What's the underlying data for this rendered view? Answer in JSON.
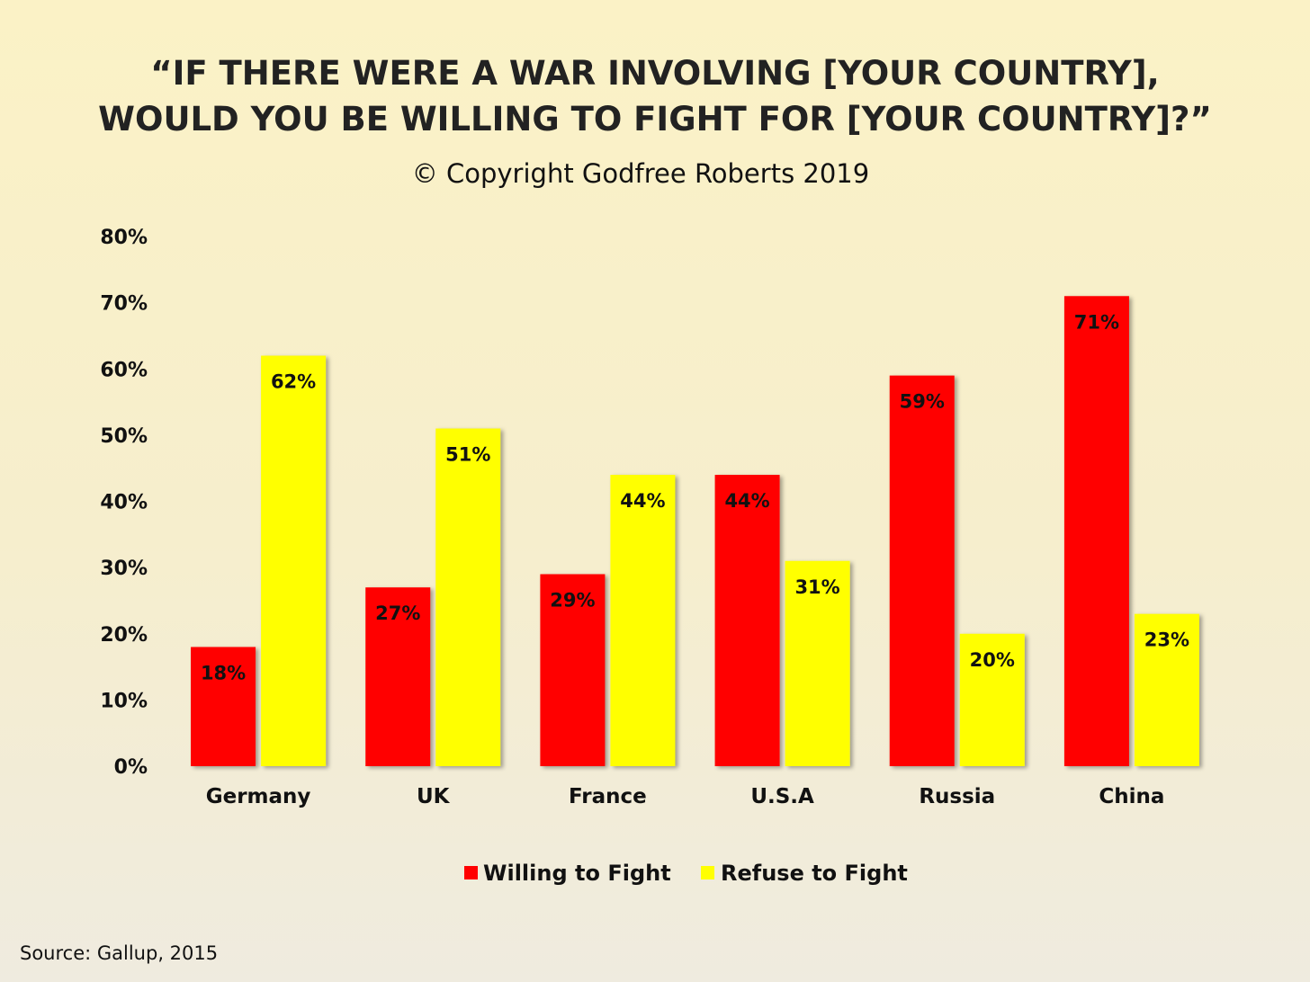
{
  "source_note": "Source: Gallup, 2015",
  "colors": {
    "willing": "#ff0000",
    "refuse": "#ffff00"
  },
  "chart_data": {
    "type": "bar",
    "title": "“IF THERE WERE A WAR INVOLVING [YOUR COUNTRY], WOULD YOU BE WILLING TO FIGHT FOR [YOUR COUNTRY]?”",
    "title_lines": [
      "“IF THERE WERE A WAR INVOLVING [YOUR COUNTRY],",
      "WOULD YOU BE WILLING TO FIGHT FOR [YOUR COUNTRY]?”"
    ],
    "subtitle": "© Copyright Godfree Roberts 2019",
    "categories": [
      "Germany",
      "UK",
      "France",
      "U.S.A",
      "Russia",
      "China"
    ],
    "series": [
      {
        "name": "Willing to Fight",
        "values": [
          18,
          27,
          29,
          44,
          59,
          71
        ],
        "labels": [
          "18%",
          "27%",
          "29%",
          "44%",
          "59%",
          "71%"
        ]
      },
      {
        "name": "Refuse to Fight",
        "values": [
          62,
          51,
          44,
          31,
          20,
          23
        ],
        "labels": [
          "62%",
          "51%",
          "44%",
          "31%",
          "20%",
          "23%"
        ]
      }
    ],
    "y_ticks": [
      "0%",
      "10%",
      "20%",
      "30%",
      "40%",
      "50%",
      "60%",
      "70%",
      "80%"
    ],
    "ylim": [
      0,
      80
    ],
    "grid": false,
    "legend_position": "bottom",
    "xlabel": "",
    "ylabel": ""
  }
}
